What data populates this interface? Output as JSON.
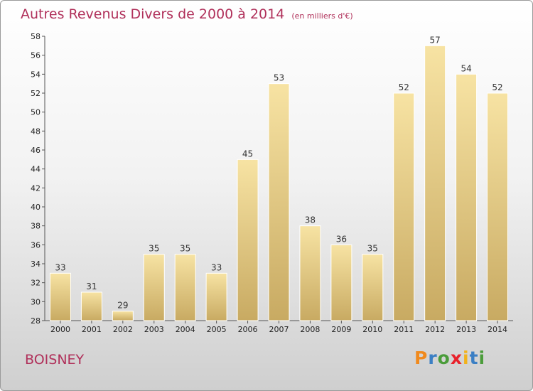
{
  "chart_data": {
    "type": "bar",
    "title": "Autres Revenus Divers de 2000 à 2014",
    "subtitle": "(en milliers d'€)",
    "categories": [
      "2000",
      "2001",
      "2002",
      "2003",
      "2004",
      "2005",
      "2006",
      "2007",
      "2008",
      "2009",
      "2010",
      "2011",
      "2012",
      "2013",
      "2014"
    ],
    "values": [
      33,
      31,
      29,
      35,
      35,
      33,
      45,
      53,
      38,
      36,
      35,
      52,
      57,
      54,
      52
    ],
    "ylim": [
      28,
      58
    ],
    "yticks": [
      28,
      30,
      32,
      34,
      36,
      38,
      40,
      42,
      44,
      46,
      48,
      50,
      52,
      54,
      56,
      58
    ],
    "grid": false,
    "colors": {
      "bar_light": "#f7e3a3",
      "bar_dark": "#c8aa62",
      "title": "#b0305a"
    }
  },
  "footer": {
    "city": "BOISNEY",
    "logo": {
      "letters": [
        "P",
        "r",
        "o",
        "x",
        "i",
        "t",
        "i"
      ],
      "colors": [
        "#f08a1e",
        "#3b7fc4",
        "#4a9c3a",
        "#e8212b",
        "#f2b21b",
        "#3b7fc4",
        "#4a9c3a"
      ]
    }
  }
}
